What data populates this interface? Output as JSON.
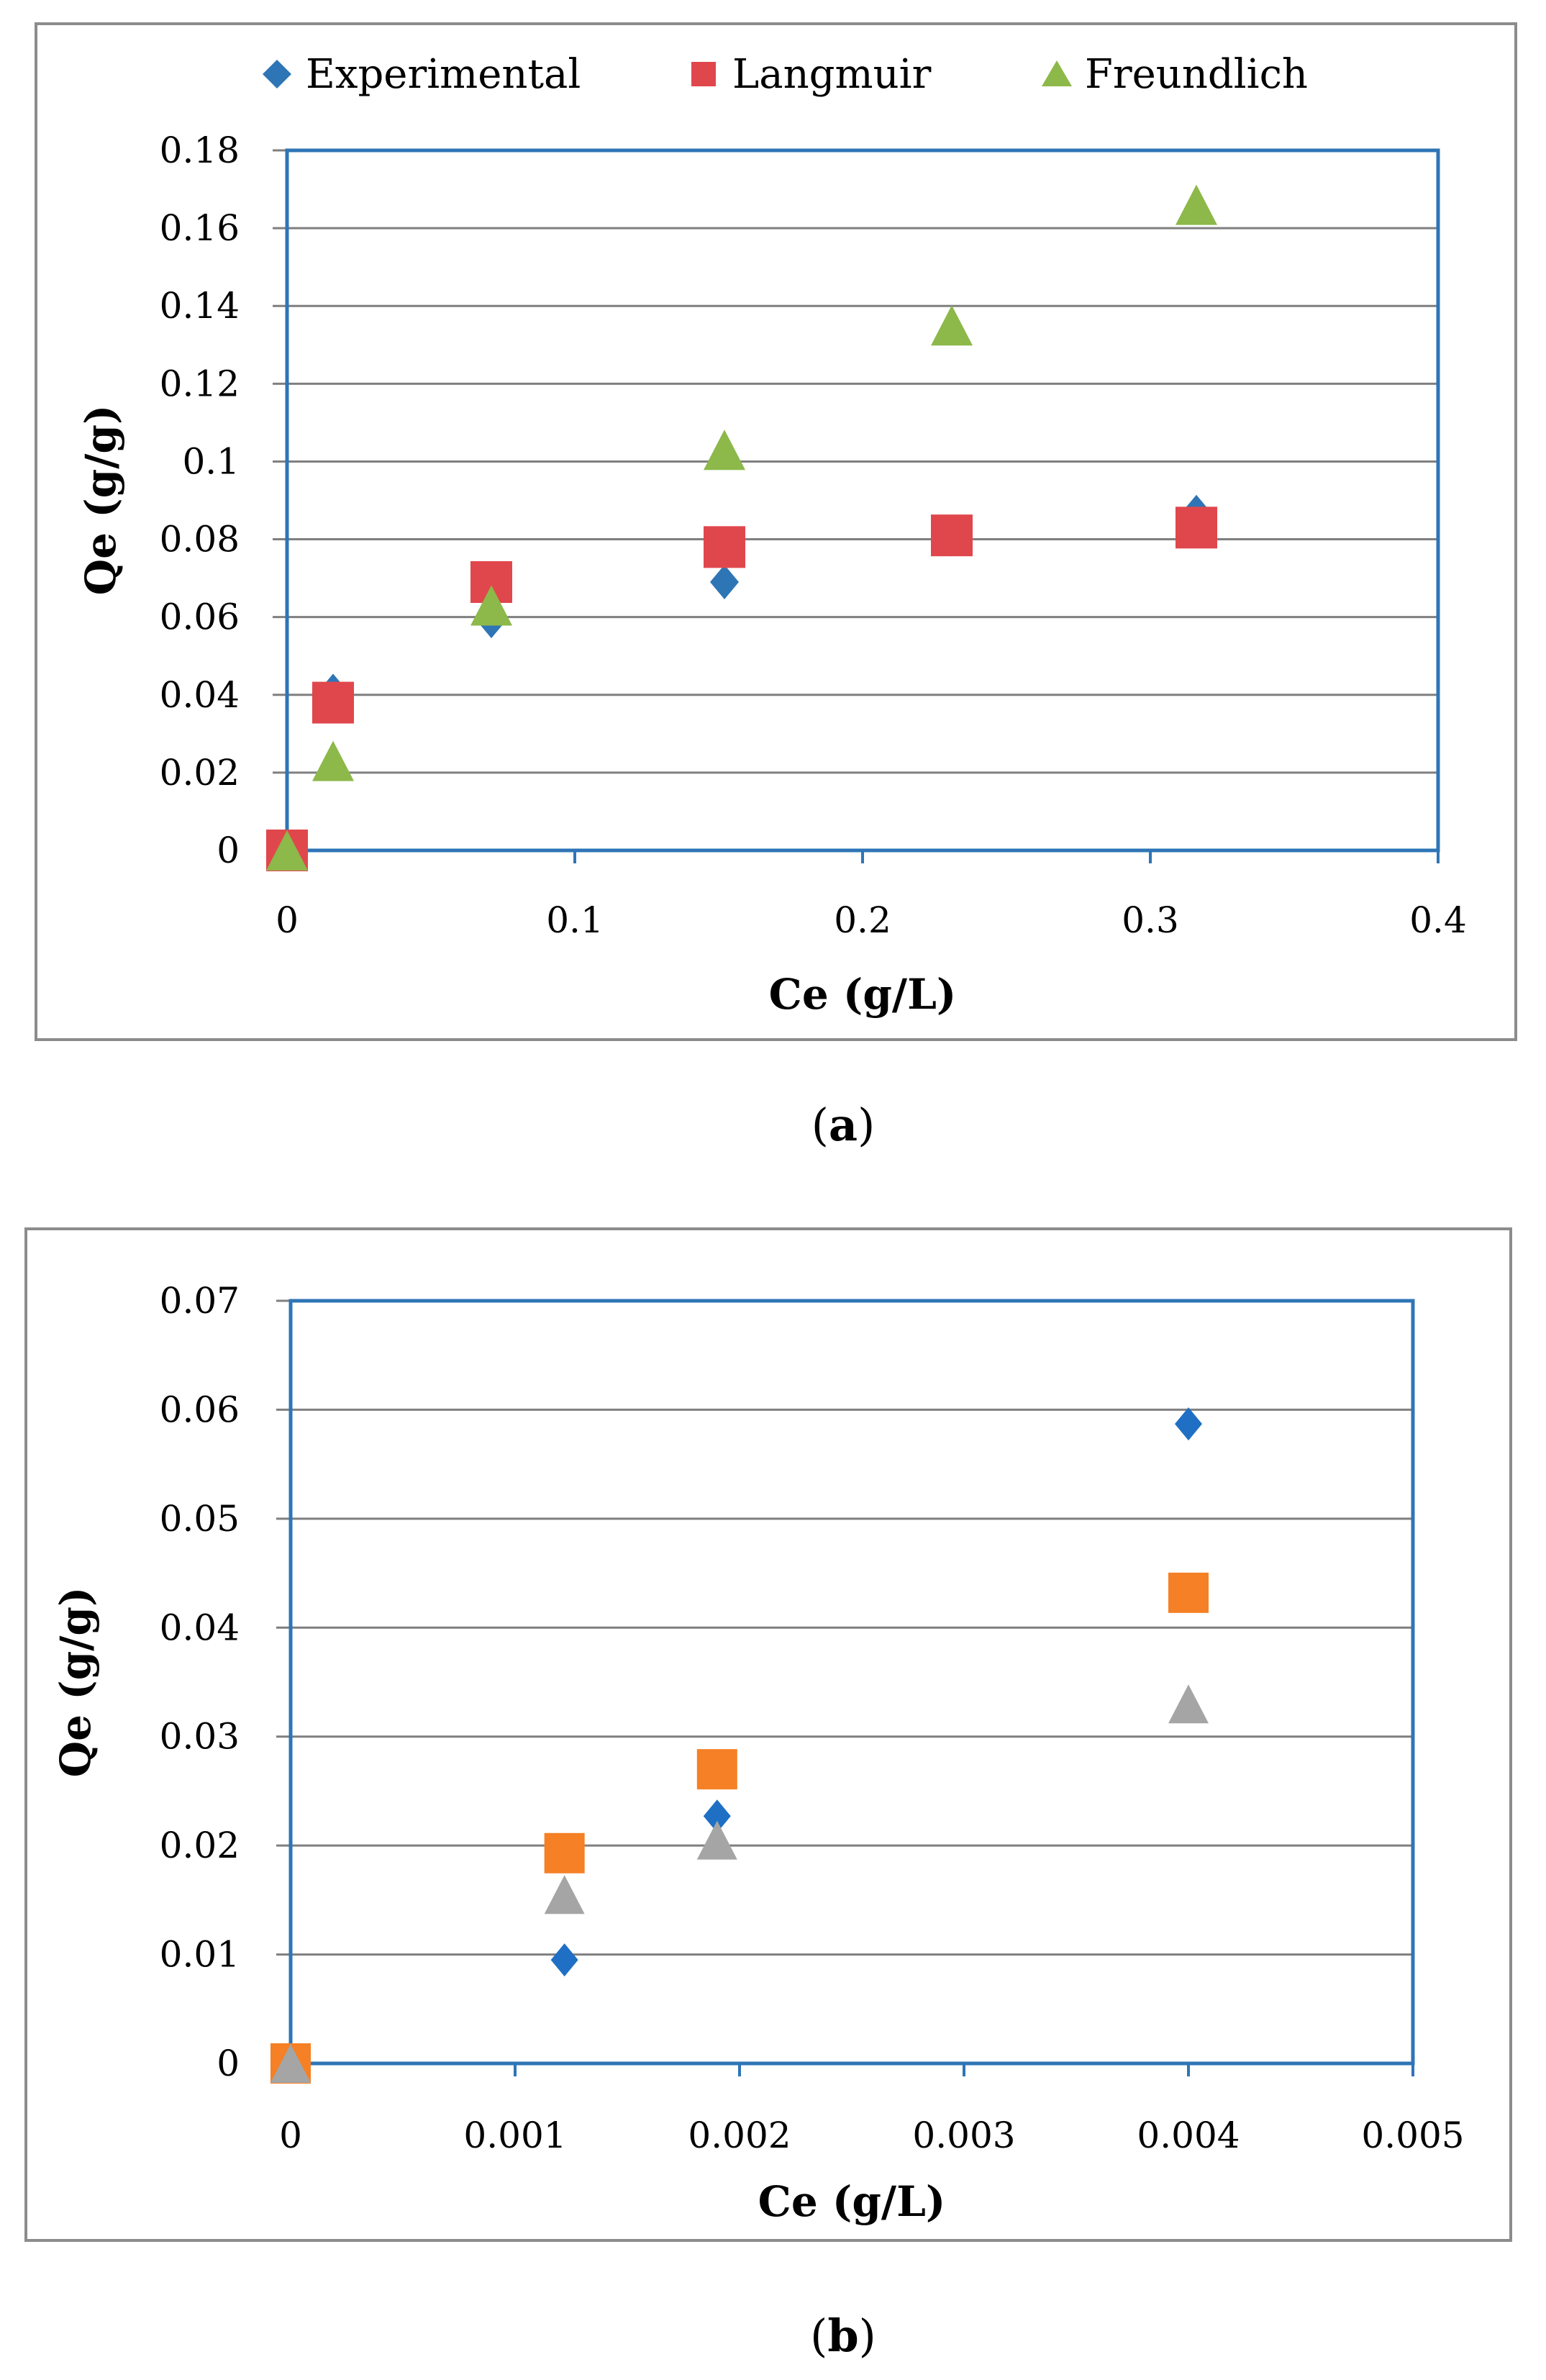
{
  "figure_caption_a_open": "(",
  "figure_caption_a_letter": "a",
  "figure_caption_a_close": ")",
  "figure_caption_b_open": "(",
  "figure_caption_b_letter": "b",
  "figure_caption_b_close": ")",
  "chart_data": [
    {
      "type": "scatter",
      "panel": "a",
      "xlabel": "Ce (g/L)",
      "ylabel": "Qe (g/g)",
      "xlim": [
        0,
        0.4
      ],
      "ylim": [
        0,
        0.18
      ],
      "xticks": [
        "0",
        "0.1",
        "0.2",
        "0.3",
        "0.4"
      ],
      "yticks": [
        "0",
        "0.02",
        "0.04",
        "0.06",
        "0.08",
        "0.1",
        "0.12",
        "0.14",
        "0.16",
        "0.18"
      ],
      "grid": "horizontal",
      "legend_position": "top",
      "series": [
        {
          "name": "Experimental",
          "marker": "diamond",
          "color": "#2E75B6",
          "x": [
            0,
            0.016,
            0.071,
            0.152,
            0.231,
            0.316
          ],
          "y": [
            0,
            0.041,
            0.059,
            0.069,
            0.08,
            0.087
          ]
        },
        {
          "name": "Langmuir",
          "marker": "square",
          "color": "#E0474C",
          "x": [
            0,
            0.016,
            0.071,
            0.152,
            0.231,
            0.316
          ],
          "y": [
            0,
            0.038,
            0.069,
            0.078,
            0.081,
            0.083
          ]
        },
        {
          "name": "Freundlich",
          "marker": "triangle",
          "color": "#8DB84A",
          "x": [
            0,
            0.016,
            0.071,
            0.152,
            0.231,
            0.316
          ],
          "y": [
            0,
            0.023,
            0.063,
            0.103,
            0.135,
            0.166
          ]
        }
      ]
    },
    {
      "type": "scatter",
      "panel": "b",
      "xlabel": "Ce (g/L)",
      "ylabel": "Qe (g/g)",
      "xlim": [
        0,
        0.005
      ],
      "ylim": [
        0,
        0.07
      ],
      "xticks": [
        "0",
        "0.001",
        "0.002",
        "0.003",
        "0.004",
        "0.005"
      ],
      "yticks": [
        "0",
        "0.01",
        "0.02",
        "0.03",
        "0.04",
        "0.05",
        "0.06",
        "0.07"
      ],
      "grid": "horizontal",
      "legend_position": "none",
      "series": [
        {
          "name": "Experimental",
          "marker": "diamond",
          "color": "#1F6FC5",
          "x": [
            0,
            0.00122,
            0.0019,
            0.004
          ],
          "y": [
            0,
            0.0095,
            0.0227,
            0.0587
          ]
        },
        {
          "name": "Langmuir",
          "marker": "square",
          "color": "#F58025",
          "x": [
            0,
            0.00122,
            0.0019,
            0.004
          ],
          "y": [
            0,
            0.0193,
            0.027,
            0.0432
          ]
        },
        {
          "name": "Freundlich",
          "marker": "triangle",
          "color": "#A5A5A5",
          "x": [
            0,
            0.00122,
            0.0019,
            0.004
          ],
          "y": [
            0,
            0.0155,
            0.0205,
            0.033
          ]
        }
      ]
    }
  ]
}
